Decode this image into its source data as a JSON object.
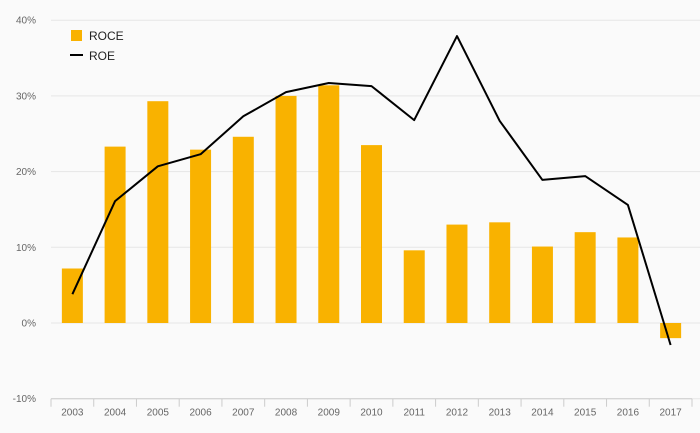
{
  "chart_data": {
    "type": "bar",
    "categories": [
      "2003",
      "2004",
      "2005",
      "2006",
      "2007",
      "2008",
      "2009",
      "2010",
      "2011",
      "2012",
      "2013",
      "2014",
      "2015",
      "2016",
      "2017"
    ],
    "series": [
      {
        "name": "ROCE",
        "type": "bar",
        "color": "#f9b200",
        "values": [
          7.2,
          23.3,
          29.3,
          22.9,
          24.6,
          30.0,
          31.4,
          23.5,
          9.6,
          13.0,
          13.3,
          10.1,
          12.0,
          11.3,
          -2.0
        ]
      },
      {
        "name": "ROE",
        "type": "line",
        "color": "#000000",
        "values": [
          3.8,
          16.1,
          20.7,
          22.3,
          27.3,
          30.5,
          31.7,
          31.3,
          26.8,
          37.9,
          26.7,
          18.9,
          19.4,
          15.6,
          -2.9
        ]
      }
    ],
    "yaxis": {
      "min": -10,
      "max": 40,
      "ticks": [
        -10,
        0,
        10,
        20,
        30,
        40
      ],
      "tick_labels": [
        "-10%",
        "0%",
        "10%",
        "20%",
        "30%",
        "40%"
      ]
    },
    "grid": true,
    "legend": "top-left"
  }
}
